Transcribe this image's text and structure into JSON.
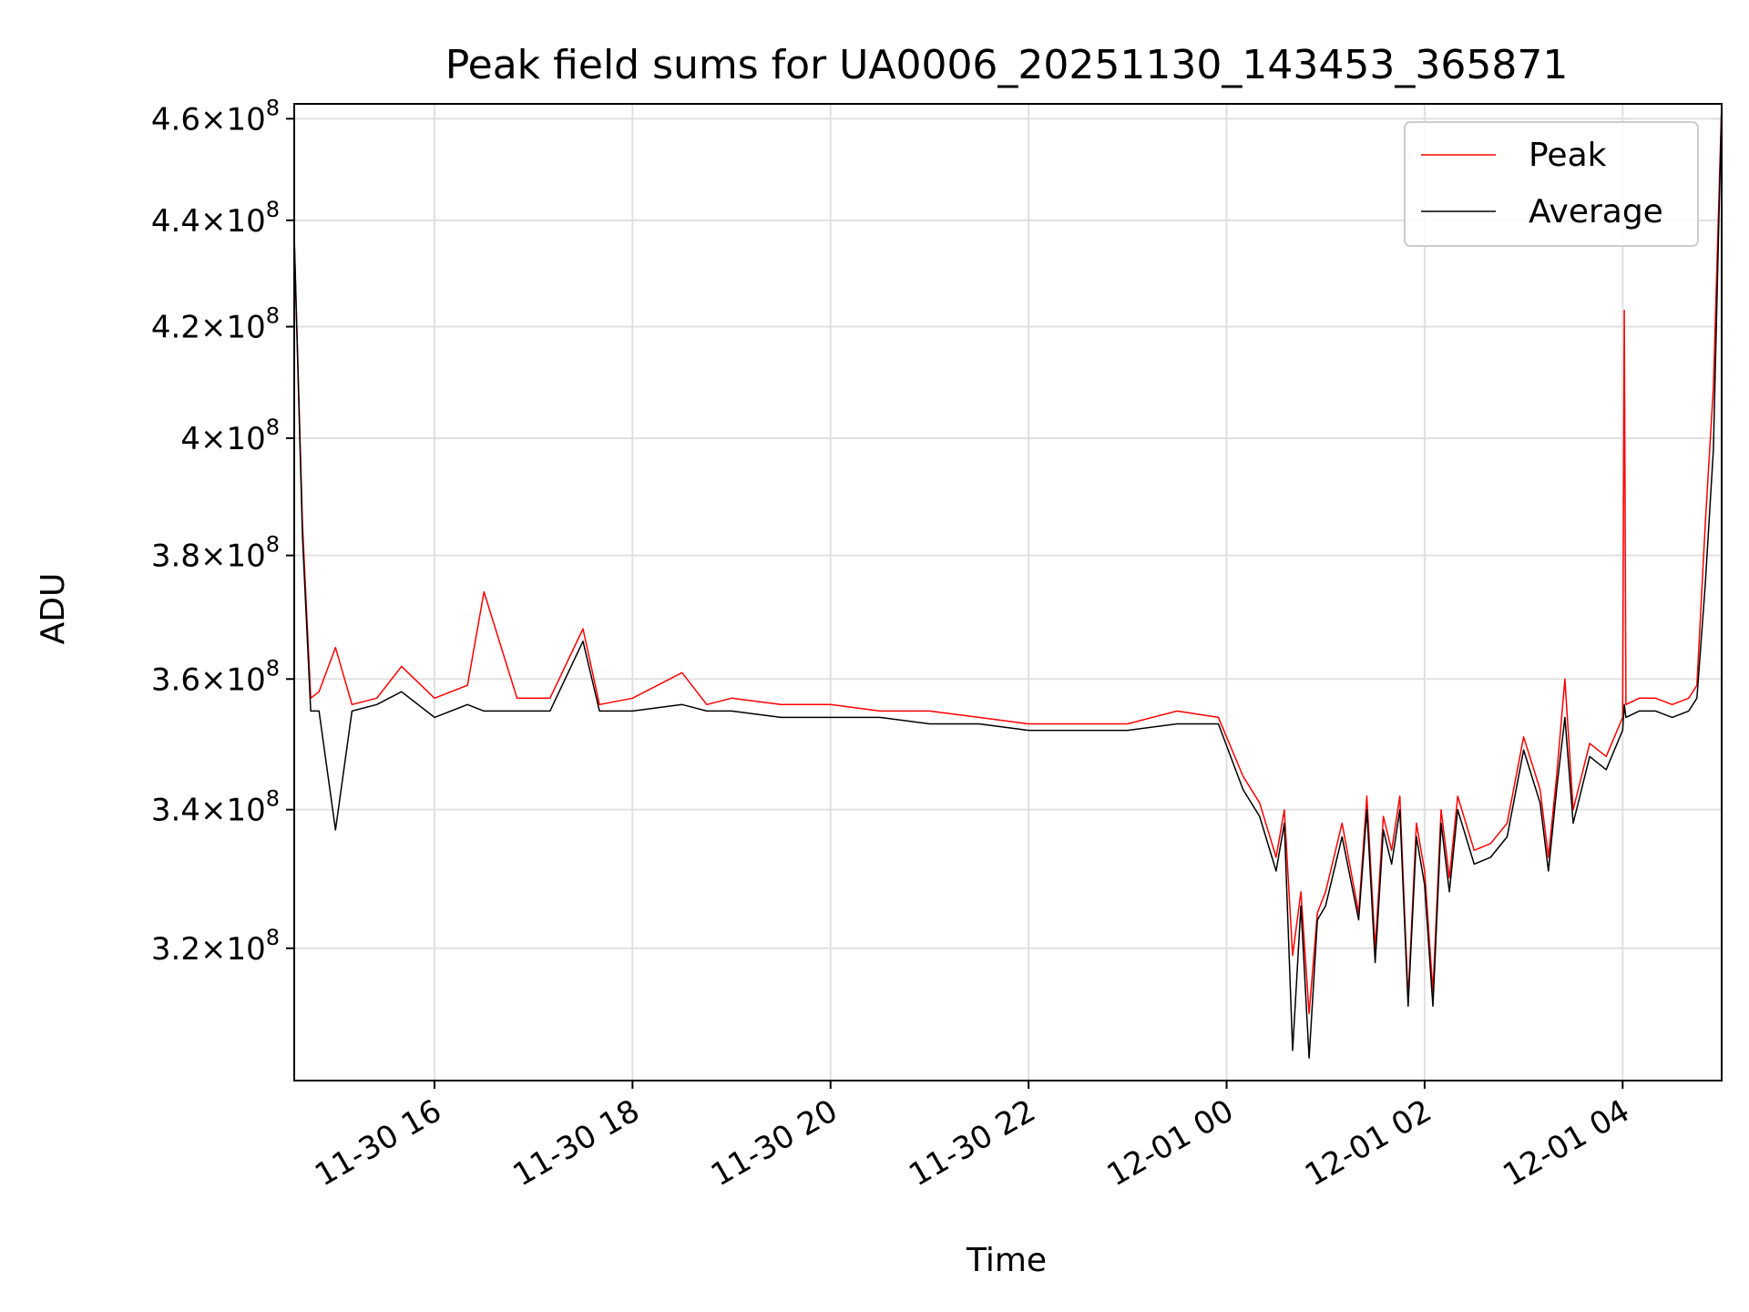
{
  "chart_data": {
    "type": "line",
    "title": "Peak field sums for UA0006_20251130_143453_365871",
    "xlabel": "Time",
    "ylabel": "ADU",
    "y_scale": "log",
    "grid": true,
    "legend_position": "top-right",
    "xlim": [
      "2025-11-30 14:35",
      "2025-12-01 05:00"
    ],
    "ylim": [
      302000000,
      463000000
    ],
    "x_ticks": [
      {
        "t": "2025-11-30 16:00",
        "label": "11-30 16"
      },
      {
        "t": "2025-11-30 18:00",
        "label": "11-30 18"
      },
      {
        "t": "2025-11-30 20:00",
        "label": "11-30 20"
      },
      {
        "t": "2025-11-30 22:00",
        "label": "11-30 22"
      },
      {
        "t": "2025-12-01 00:00",
        "label": "12-01 00"
      },
      {
        "t": "2025-12-01 02:00",
        "label": "12-01 02"
      },
      {
        "t": "2025-12-01 04:00",
        "label": "12-01 04"
      }
    ],
    "y_ticks": [
      {
        "v": 320000000,
        "mantissa": "3.2",
        "exp": "8"
      },
      {
        "v": 340000000,
        "mantissa": "3.4",
        "exp": "8"
      },
      {
        "v": 360000000,
        "mantissa": "3.6",
        "exp": "8"
      },
      {
        "v": 380000000,
        "mantissa": "3.8",
        "exp": "8"
      },
      {
        "v": 400000000,
        "mantissa": "4",
        "exp": "8"
      },
      {
        "v": 420000000,
        "mantissa": "4.2",
        "exp": "8"
      },
      {
        "v": 440000000,
        "mantissa": "4.4",
        "exp": "8"
      },
      {
        "v": 460000000,
        "mantissa": "4.6",
        "exp": "8"
      }
    ],
    "series": [
      {
        "name": "Peak",
        "color": "#ff0000",
        "x": [
          "2025-11-30 14:35",
          "2025-11-30 14:40",
          "2025-11-30 14:45",
          "2025-11-30 14:50",
          "2025-11-30 15:00",
          "2025-11-30 15:10",
          "2025-11-30 15:25",
          "2025-11-30 15:40",
          "2025-11-30 16:00",
          "2025-11-30 16:20",
          "2025-11-30 16:30",
          "2025-11-30 16:50",
          "2025-11-30 17:10",
          "2025-11-30 17:30",
          "2025-11-30 17:40",
          "2025-11-30 18:00",
          "2025-11-30 18:30",
          "2025-11-30 18:45",
          "2025-11-30 19:00",
          "2025-11-30 19:30",
          "2025-11-30 20:00",
          "2025-11-30 20:30",
          "2025-11-30 21:00",
          "2025-11-30 21:30",
          "2025-11-30 22:00",
          "2025-11-30 22:30",
          "2025-11-30 23:00",
          "2025-11-30 23:30",
          "2025-11-30 23:55",
          "2025-12-01 00:10",
          "2025-12-01 00:20",
          "2025-12-01 00:30",
          "2025-12-01 00:35",
          "2025-12-01 00:40",
          "2025-12-01 00:45",
          "2025-12-01 00:50",
          "2025-12-01 00:55",
          "2025-12-01 01:00",
          "2025-12-01 01:10",
          "2025-12-01 01:20",
          "2025-12-01 01:25",
          "2025-12-01 01:30",
          "2025-12-01 01:35",
          "2025-12-01 01:40",
          "2025-12-01 01:45",
          "2025-12-01 01:50",
          "2025-12-01 01:55",
          "2025-12-01 02:00",
          "2025-12-01 02:05",
          "2025-12-01 02:10",
          "2025-12-01 02:15",
          "2025-12-01 02:20",
          "2025-12-01 02:30",
          "2025-12-01 02:40",
          "2025-12-01 02:50",
          "2025-12-01 03:00",
          "2025-12-01 03:10",
          "2025-12-01 03:15",
          "2025-12-01 03:20",
          "2025-12-01 03:25",
          "2025-12-01 03:30",
          "2025-12-01 03:40",
          "2025-12-01 03:50",
          "2025-12-01 04:00",
          "2025-12-01 04:01",
          "2025-12-01 04:02",
          "2025-12-01 04:10",
          "2025-12-01 04:20",
          "2025-12-01 04:30",
          "2025-12-01 04:40",
          "2025-12-01 04:45",
          "2025-12-01 04:50",
          "2025-12-01 04:55",
          "2025-12-01 05:00"
        ],
        "values": [
          437000000,
          385000000,
          357000000,
          358000000,
          365000000,
          356000000,
          357000000,
          362000000,
          357000000,
          359000000,
          374000000,
          357000000,
          357000000,
          368000000,
          356000000,
          357000000,
          361000000,
          356000000,
          357000000,
          356000000,
          356000000,
          355000000,
          355000000,
          354000000,
          353000000,
          353000000,
          353000000,
          355000000,
          354000000,
          345000000,
          341000000,
          333000000,
          340000000,
          319000000,
          328000000,
          311000000,
          325000000,
          328000000,
          338000000,
          325000000,
          342000000,
          320000000,
          339000000,
          334000000,
          342000000,
          313000000,
          338000000,
          331000000,
          314000000,
          340000000,
          330000000,
          342000000,
          334000000,
          335000000,
          338000000,
          351000000,
          343000000,
          333000000,
          345000000,
          360000000,
          340000000,
          350000000,
          348000000,
          354000000,
          423000000,
          356000000,
          357000000,
          357000000,
          356000000,
          357000000,
          359000000,
          385000000,
          409000000,
          463000000
        ]
      },
      {
        "name": "Average",
        "color": "#000000",
        "x": [
          "2025-11-30 14:35",
          "2025-11-30 14:40",
          "2025-11-30 14:45",
          "2025-11-30 14:50",
          "2025-11-30 15:00",
          "2025-11-30 15:10",
          "2025-11-30 15:25",
          "2025-11-30 15:40",
          "2025-11-30 16:00",
          "2025-11-30 16:20",
          "2025-11-30 16:30",
          "2025-11-30 16:50",
          "2025-11-30 17:10",
          "2025-11-30 17:30",
          "2025-11-30 17:40",
          "2025-11-30 18:00",
          "2025-11-30 18:30",
          "2025-11-30 18:45",
          "2025-11-30 19:00",
          "2025-11-30 19:30",
          "2025-11-30 20:00",
          "2025-11-30 20:30",
          "2025-11-30 21:00",
          "2025-11-30 21:30",
          "2025-11-30 22:00",
          "2025-11-30 22:30",
          "2025-11-30 23:00",
          "2025-11-30 23:30",
          "2025-11-30 23:55",
          "2025-12-01 00:10",
          "2025-12-01 00:20",
          "2025-12-01 00:30",
          "2025-12-01 00:35",
          "2025-12-01 00:40",
          "2025-12-01 00:45",
          "2025-12-01 00:50",
          "2025-12-01 00:55",
          "2025-12-01 01:00",
          "2025-12-01 01:10",
          "2025-12-01 01:20",
          "2025-12-01 01:25",
          "2025-12-01 01:30",
          "2025-12-01 01:35",
          "2025-12-01 01:40",
          "2025-12-01 01:45",
          "2025-12-01 01:50",
          "2025-12-01 01:55",
          "2025-12-01 02:00",
          "2025-12-01 02:05",
          "2025-12-01 02:10",
          "2025-12-01 02:15",
          "2025-12-01 02:20",
          "2025-12-01 02:30",
          "2025-12-01 02:40",
          "2025-12-01 02:50",
          "2025-12-01 03:00",
          "2025-12-01 03:10",
          "2025-12-01 03:15",
          "2025-12-01 03:20",
          "2025-12-01 03:25",
          "2025-12-01 03:30",
          "2025-12-01 03:40",
          "2025-12-01 03:50",
          "2025-12-01 04:00",
          "2025-12-01 04:01",
          "2025-12-01 04:02",
          "2025-12-01 04:10",
          "2025-12-01 04:20",
          "2025-12-01 04:30",
          "2025-12-01 04:40",
          "2025-12-01 04:45",
          "2025-12-01 04:50",
          "2025-12-01 04:55",
          "2025-12-01 05:00"
        ],
        "values": [
          437000000,
          383000000,
          355000000,
          355000000,
          337000000,
          355000000,
          356000000,
          358000000,
          354000000,
          356000000,
          355000000,
          355000000,
          355000000,
          366000000,
          355000000,
          355000000,
          356000000,
          355000000,
          355000000,
          354000000,
          354000000,
          354000000,
          353000000,
          353000000,
          352000000,
          352000000,
          352000000,
          353000000,
          353000000,
          343000000,
          339000000,
          331000000,
          338000000,
          306000000,
          326000000,
          305000000,
          324000000,
          326000000,
          336000000,
          324000000,
          340000000,
          318000000,
          337000000,
          332000000,
          340000000,
          312000000,
          336000000,
          329000000,
          312000000,
          338000000,
          328000000,
          340000000,
          332000000,
          333000000,
          336000000,
          349000000,
          341000000,
          331000000,
          343000000,
          354000000,
          338000000,
          348000000,
          346000000,
          352000000,
          356000000,
          354000000,
          355000000,
          355000000,
          354000000,
          355000000,
          357000000,
          375000000,
          398000000,
          463000000
        ]
      }
    ]
  }
}
